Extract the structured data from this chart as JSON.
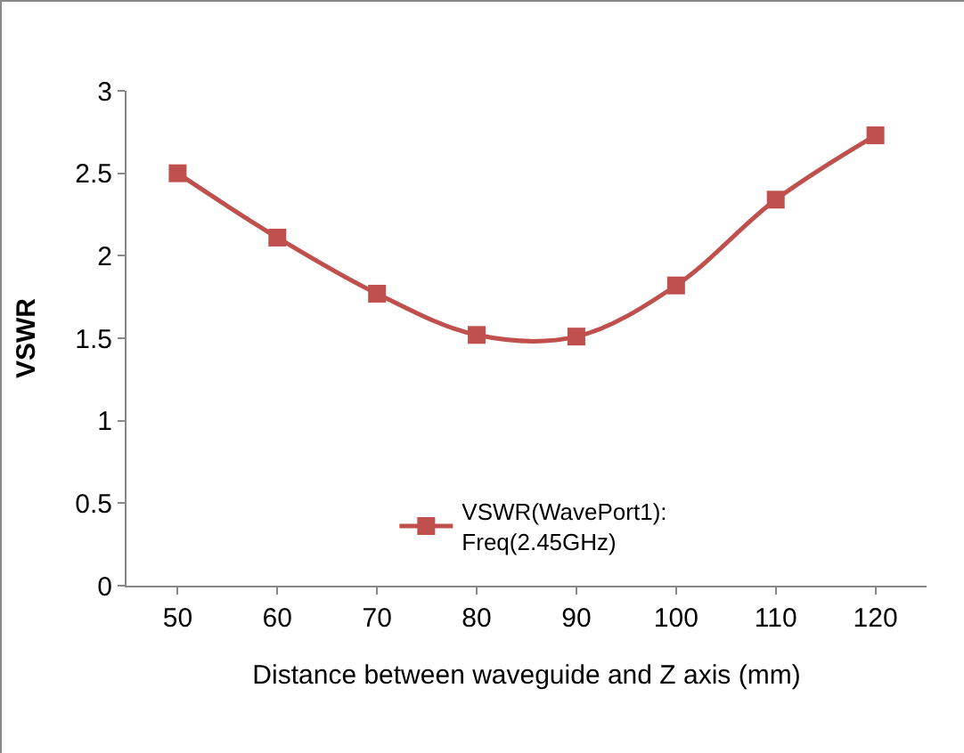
{
  "chart_data": {
    "type": "line",
    "xlabel": "Distance between waveguide and Z axis (mm)",
    "ylabel": "VSWR",
    "categories": [
      "50",
      "60",
      "70",
      "80",
      "90",
      "100",
      "110",
      "120"
    ],
    "series": [
      {
        "name": "VSWR(WavePort1):\nFreq(2.45GHz)",
        "color": "#c0504d",
        "values": [
          2.5,
          2.11,
          1.77,
          1.52,
          1.51,
          1.82,
          2.34,
          2.73
        ]
      }
    ],
    "ylim": [
      0,
      3
    ],
    "yticks": [
      0,
      0.5,
      1,
      1.5,
      2,
      2.5,
      3
    ],
    "grid": false,
    "legend": "bottom",
    "marker": "square",
    "line_style": "solid"
  }
}
